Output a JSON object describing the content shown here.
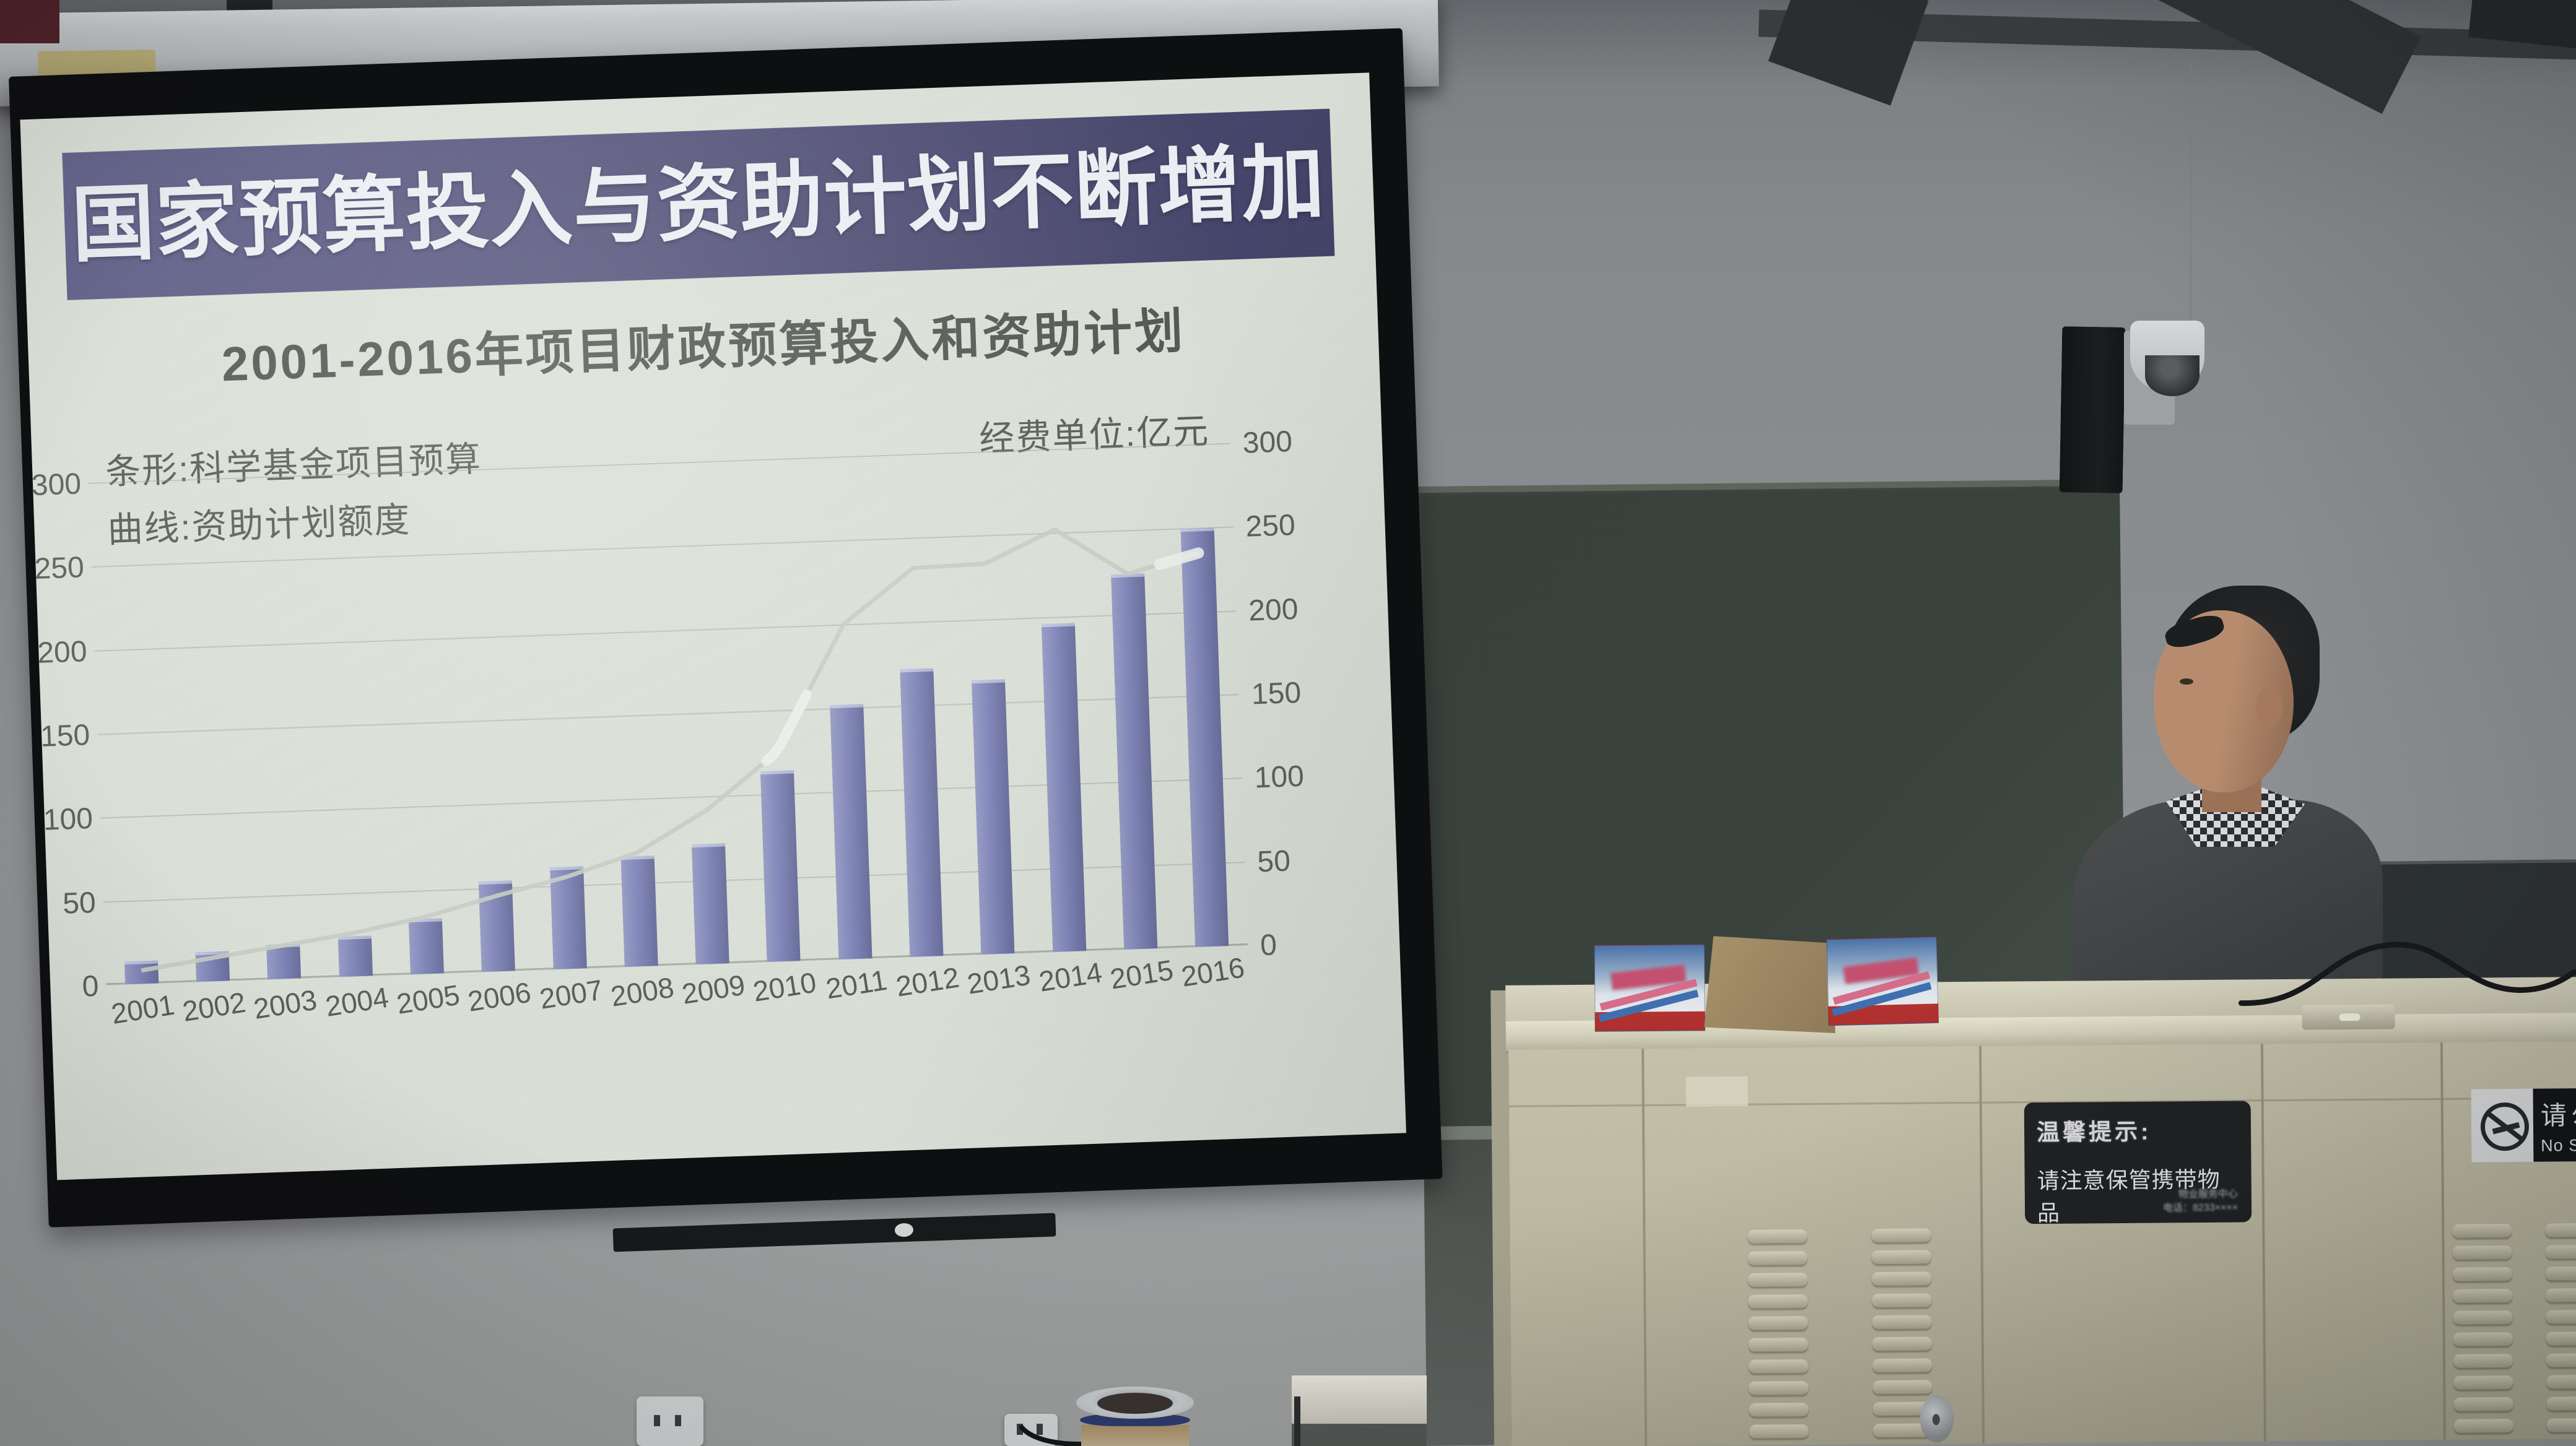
{
  "slide": {
    "title": "国家预算投入与资助计划不断增加",
    "chart_title": "2001-2016年项目财政预算投入和资助计划",
    "legend_bar": "条形:科学基金项目预算",
    "legend_line": "曲线:资助计划额度",
    "unit_label": "经费单位:亿元"
  },
  "chart_data": {
    "type": "bar+line",
    "title": "2001-2016年项目财政预算投入和资助计划",
    "unit": "亿元",
    "categories": [
      "2001",
      "2002",
      "2003",
      "2004",
      "2005",
      "2006",
      "2007",
      "2008",
      "2009",
      "2010",
      "2011",
      "2012",
      "2013",
      "2014",
      "2015",
      "2016"
    ],
    "series": [
      {
        "name": "科学基金项目预算",
        "type": "bar",
        "values": [
          12,
          16,
          19,
          22,
          31,
          52,
          59,
          64,
          70,
          112,
          150,
          170,
          162,
          194,
          222,
          248
        ]
      },
      {
        "name": "资助计划额度",
        "type": "line",
        "values": [
          8,
          14,
          20,
          26,
          34,
          45,
          55,
          68,
          92,
          125,
          200,
          232,
          233,
          252,
          224,
          235
        ]
      }
    ],
    "ylim": [
      0,
      300
    ],
    "y_ticks": [
      0,
      50,
      100,
      150,
      200,
      250,
      300
    ],
    "grid": true,
    "dual_axis_labels": true,
    "legend_position": "top-left"
  },
  "podium": {
    "notice_sign": {
      "title": "温馨提示:",
      "body": "请注意保管携带物品",
      "footer_line1": "物业服务中心",
      "footer_line2": "电话：8233××××"
    },
    "no_smoking": {
      "cn": "请勿吸烟",
      "en": "No Smoking"
    }
  },
  "colors": {
    "banner": "#504f7d",
    "slide_bg": "#dae0d7",
    "bar": "#7e84b8",
    "line": "#c6cdc3",
    "blackboard": "#3a423d",
    "cabinet": "#bdbaa3",
    "sign_bg": "#202224"
  }
}
